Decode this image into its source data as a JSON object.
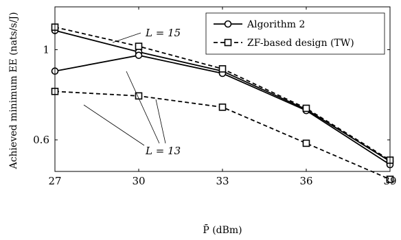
{
  "chart_data": {
    "type": "line",
    "title": "",
    "xlabel": "P̄ (dBm)",
    "ylabel": "Achieved minimum EE (nats/s/J)",
    "x": [
      27,
      30,
      33,
      36,
      39
    ],
    "xticks": [
      "27",
      "30",
      "33",
      "36",
      "39"
    ],
    "yticks": [
      {
        "value": 0.6,
        "label": "0.6"
      },
      {
        "value": 1.0,
        "label": "1"
      }
    ],
    "xlim": [
      27,
      39
    ],
    "ylim": [
      0.46,
      1.19
    ],
    "grid": false,
    "legend_position": "top-right",
    "legend": [
      {
        "label": "Algorithm 2",
        "style": "solid",
        "marker": "circle"
      },
      {
        "label": "ZF-based design (TW)",
        "style": "dashed",
        "marker": "square"
      }
    ],
    "series": [
      {
        "group": "Algorithm 2",
        "L": 15,
        "style": "solid",
        "marker": "circle",
        "values": [
          1.085,
          0.99,
          0.905,
          0.735,
          0.505
        ]
      },
      {
        "group": "Algorithm 2",
        "L": 13,
        "style": "solid",
        "marker": "circle",
        "values": [
          0.905,
          0.975,
          0.895,
          0.73,
          0.49
        ]
      },
      {
        "group": "ZF-based design (TW)",
        "L": 15,
        "style": "dashed",
        "marker": "square",
        "values": [
          1.1,
          1.015,
          0.915,
          0.74,
          0.51
        ]
      },
      {
        "group": "ZF-based design (TW)",
        "L": 13,
        "style": "dashed",
        "marker": "square",
        "values": [
          0.815,
          0.795,
          0.745,
          0.585,
          0.425
        ]
      }
    ],
    "annotations": [
      {
        "id": "l15",
        "text": "L = 15",
        "target_x": 28.8,
        "target_y": 1.055
      },
      {
        "id": "l13",
        "text": "L = 13",
        "targets": [
          [
            27.5,
            0.81
          ],
          [
            30.1,
            0.97
          ],
          [
            31.5,
            0.915
          ]
        ]
      }
    ]
  }
}
